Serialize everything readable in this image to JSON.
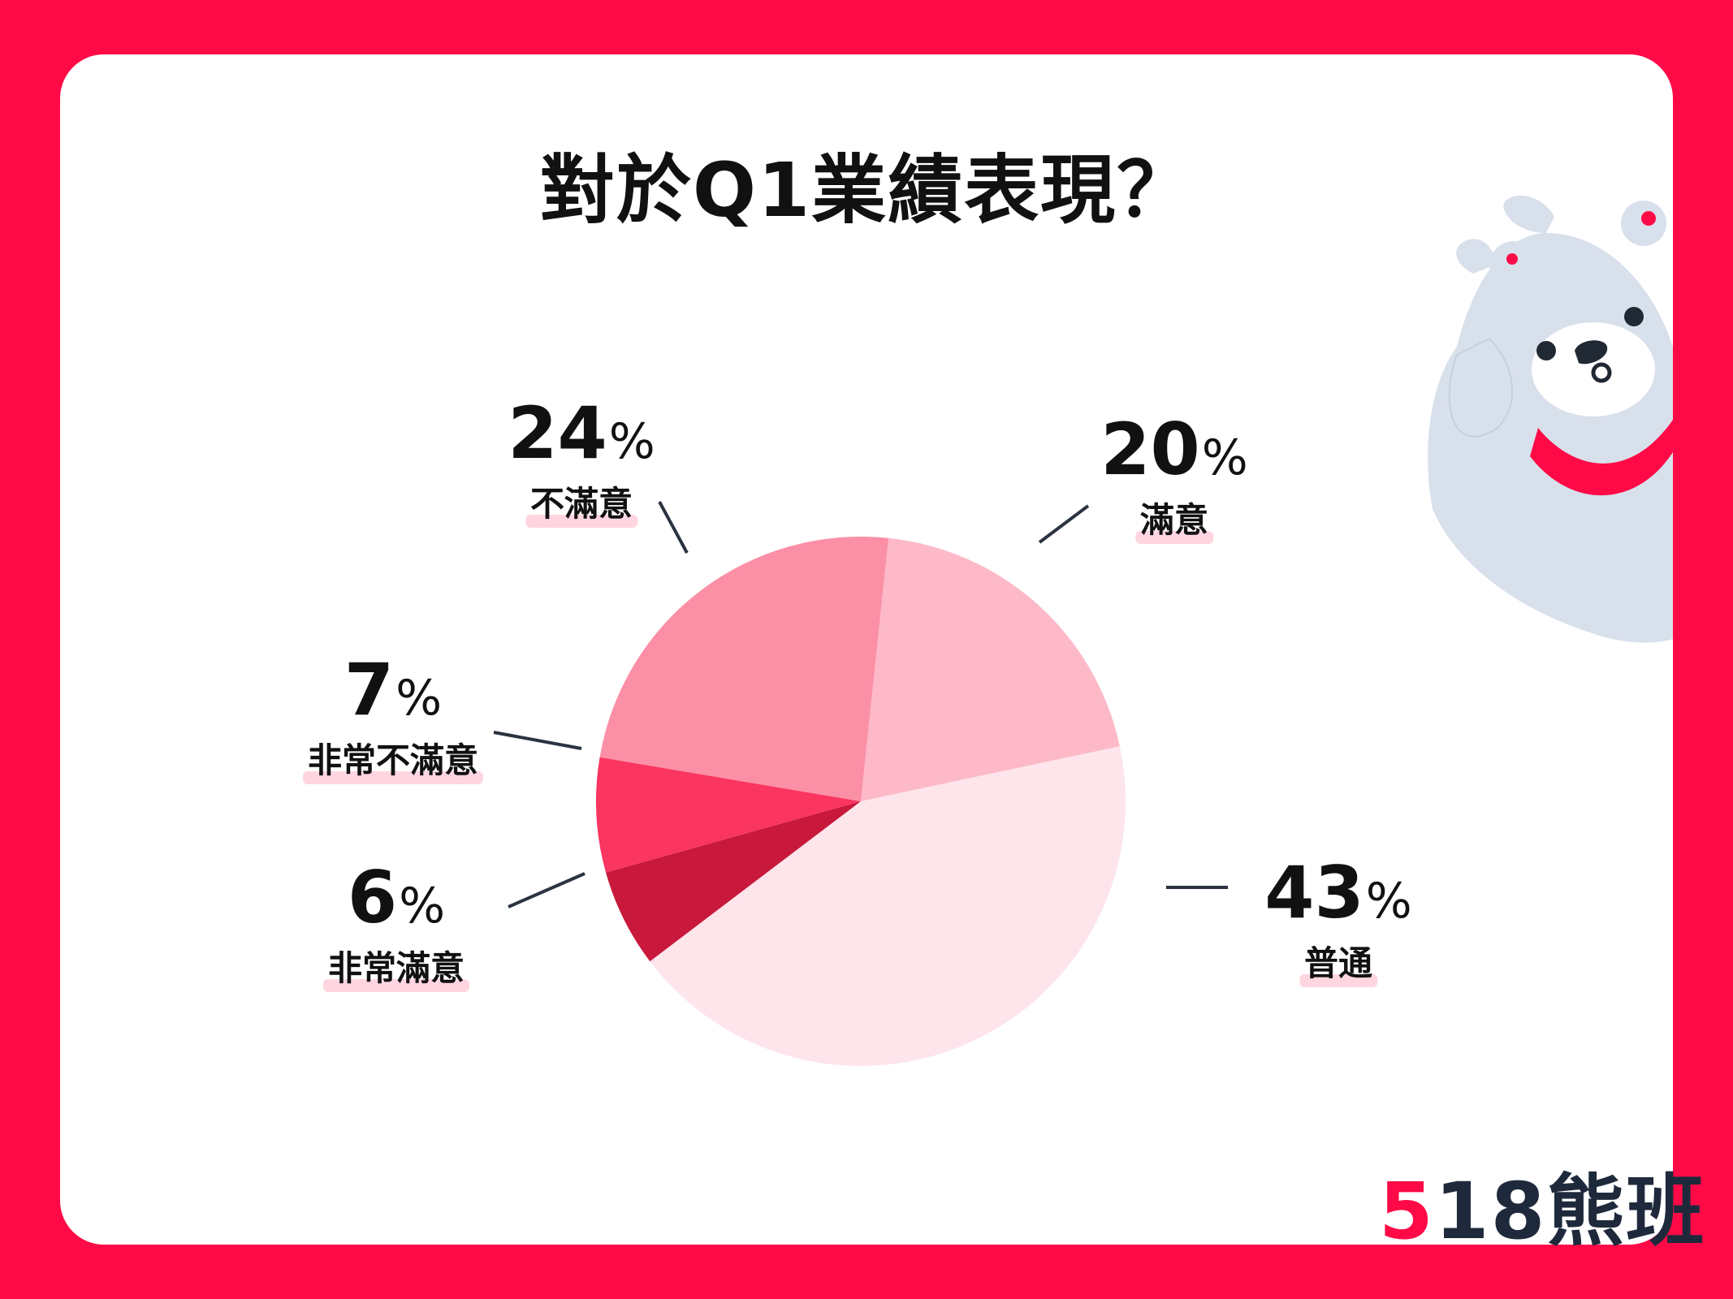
{
  "title": "對於Q1業績表現？",
  "brand": {
    "highlight": "5",
    "rest": "18熊班"
  },
  "colors": {
    "frame": "#ff0a47",
    "card": "#ffffff"
  },
  "chart_data": {
    "type": "pie",
    "title": "對於Q1業績表現？",
    "start_category": "滿意",
    "slices": [
      {
        "label": "滿意",
        "value": 20,
        "display": "20",
        "color": "#fdb9c7"
      },
      {
        "label": "普通",
        "value": 43,
        "display": "43",
        "color": "#fde5eb"
      },
      {
        "label": "非常滿意",
        "value": 6,
        "display": "6",
        "color": "#c8183b"
      },
      {
        "label": "非常不滿意",
        "value": 7,
        "display": "7",
        "color": "#fa3560"
      },
      {
        "label": "不滿意",
        "value": 24,
        "display": "24",
        "color": "#fb8fa6"
      }
    ],
    "unit": "%"
  }
}
